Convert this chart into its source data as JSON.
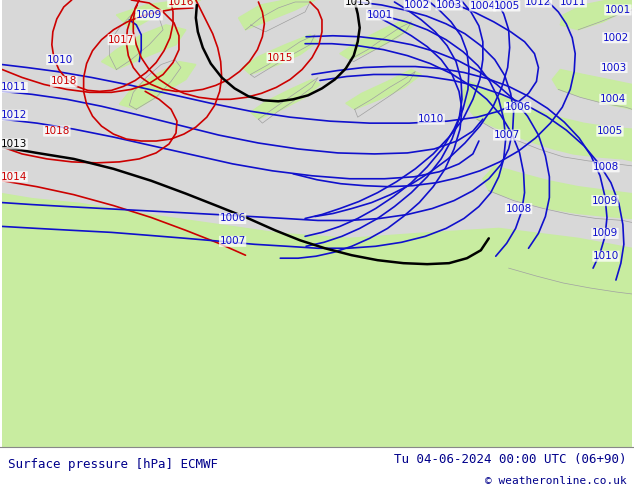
{
  "title_left": "Surface pressure [hPa] ECMWF",
  "title_right": "Tu 04-06-2024 00:00 UTC (06+90)",
  "copyright": "© weatheronline.co.uk",
  "bg_sea": "#d8d8d8",
  "bg_green": "#c8eca0",
  "bg_green2": "#d0f0a8",
  "coast_color": "#a0a0a0",
  "blue": "#1010cc",
  "red": "#cc0000",
  "black": "#000000",
  "footer_bg": "#ffffff",
  "footer_fg": "#00008b",
  "figsize": [
    6.34,
    4.9
  ],
  "dpi": 100
}
